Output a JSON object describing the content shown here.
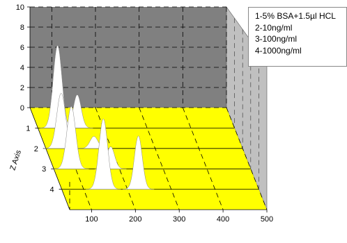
{
  "chart_data": {
    "type": "line",
    "chart_style": "3d-waterfall",
    "x_axis": {
      "ticks": [
        100,
        200,
        300,
        400,
        500
      ],
      "range": [
        50,
        500
      ]
    },
    "y_axis": {
      "ticks": [
        0,
        2,
        4,
        6,
        8,
        10
      ],
      "range": [
        0,
        10
      ]
    },
    "z_axis": {
      "label": "Z Axis",
      "ticks": [
        1,
        2,
        3,
        4
      ]
    },
    "legend": {
      "placement": "top-right",
      "entries": [
        "1-5% BSA+1.5µl HCL",
        "2-10ng/ml",
        "3-100ng/ml",
        "4-1000ng/ml"
      ]
    },
    "colors": {
      "back_wall": "#808080",
      "floor": "#ffff00",
      "side_wall": "#c0c0c0",
      "peak_fill": "#ffffff",
      "gridline": "#000000"
    },
    "grid": "dashed",
    "series": [
      {
        "z": 1,
        "peaks": [
          {
            "x": 95,
            "height": 8.2,
            "width": 10
          },
          {
            "x": 140,
            "height": 3.3,
            "width": 9
          }
        ]
      },
      {
        "z": 2,
        "peaks": [
          {
            "x": 85,
            "height": 5.5,
            "width": 10
          },
          {
            "x": 160,
            "height": 1.2,
            "width": 9
          }
        ]
      },
      {
        "z": 3,
        "peaks": [
          {
            "x": 90,
            "height": 6.2,
            "width": 10
          },
          {
            "x": 180,
            "height": 2.2,
            "width": 9
          }
        ]
      },
      {
        "z": 4,
        "peaks": [
          {
            "x": 145,
            "height": 7.0,
            "width": 10
          },
          {
            "x": 225,
            "height": 5.3,
            "width": 9
          }
        ]
      }
    ]
  }
}
